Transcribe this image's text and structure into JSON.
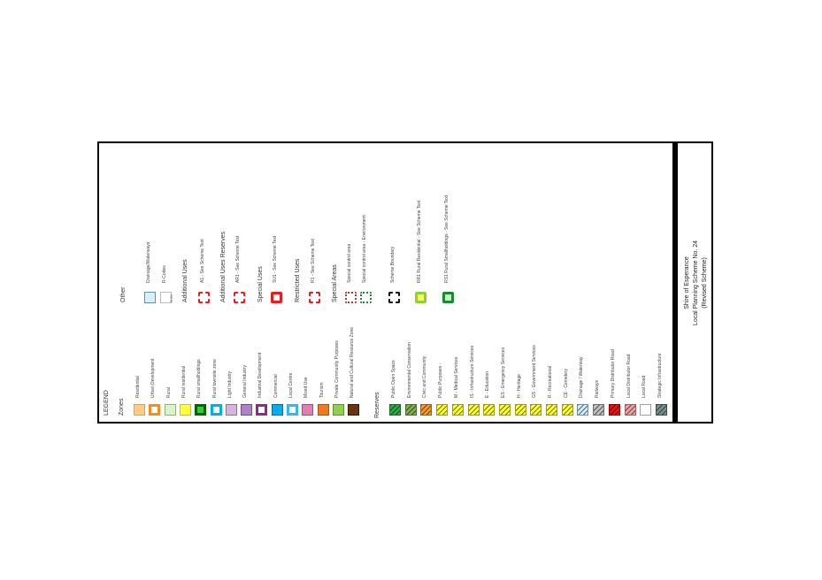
{
  "legend": {
    "heading": "LEGEND",
    "zones_heading": "Zones",
    "zones": [
      {
        "label": "Residential",
        "fill": "#ffcc80",
        "border": "#d8a060"
      },
      {
        "label": "Urban Development",
        "fill": "#ffffff",
        "border": "#f0901e",
        "thick": true
      },
      {
        "label": "Rural",
        "fill": "#d9f5c8",
        "border": "#90b080"
      },
      {
        "label": "Rural residential",
        "fill": "#ffff40",
        "border": "#c8c800"
      },
      {
        "label": "Rural smallholdings",
        "fill": "#33cc33",
        "border": "#006600",
        "thick": true
      },
      {
        "label": "Rural townsite zone",
        "fill": "#ffffff",
        "border": "#00b0e0",
        "thick": true
      },
      {
        "label": "Light Industry",
        "fill": "#d6b4e0",
        "border": "#9070a0"
      },
      {
        "label": "General Industry",
        "fill": "#b080c8",
        "border": "#705080"
      },
      {
        "label": "Industrial Development",
        "fill": "#ffffff",
        "border": "#8a2c8a",
        "thick": true
      },
      {
        "label": "Commercial",
        "fill": "#00aeef",
        "border": "#0070a0"
      },
      {
        "label": "Local Centre",
        "fill": "#ffffff",
        "border": "#30b8f0",
        "thick": true
      },
      {
        "label": "Mixed Use",
        "fill": "#e080b0",
        "border": "#a05070"
      },
      {
        "label": "Tourism",
        "fill": "#f07a1a",
        "border": "#b05000"
      },
      {
        "label": "Private Community Purposes",
        "fill": "#90d050",
        "border": "#609030"
      },
      {
        "label": "Natural and Cultural Resource Zone",
        "fill": "#6b3410",
        "border": "#3a1a00"
      }
    ],
    "reserves_heading": "Reserves",
    "reserves": [
      {
        "label": "Public Open Space",
        "fill": "#2eaa44",
        "border": "#1a6e28",
        "hatch": true
      },
      {
        "label": "Environmental Conservation",
        "fill": "#80b050",
        "border": "#507030",
        "hatch": true
      },
      {
        "label": "Civic and Community",
        "fill": "#f59a2a",
        "border": "#a06010",
        "hatch": true
      },
      {
        "label": "Public Purposes -",
        "fill": "#ffff30",
        "border": "#a0a000",
        "hatch": true
      },
      {
        "label": "M - Medical Services",
        "fill": "#ffff30",
        "border": "#a0a000",
        "hatch": true
      },
      {
        "label": "IS - Infrastructure Services",
        "fill": "#ffff30",
        "border": "#a0a000",
        "hatch": true
      },
      {
        "label": "E - Education",
        "fill": "#ffff30",
        "border": "#a0a000",
        "hatch": true
      },
      {
        "label": "ES - Emergency Services",
        "fill": "#ffff30",
        "border": "#a0a000",
        "hatch": true
      },
      {
        "label": "H - Heritage",
        "fill": "#ffff30",
        "border": "#a0a000",
        "hatch": true
      },
      {
        "label": "GS - Government Services",
        "fill": "#ffff30",
        "border": "#a0a000",
        "hatch": true
      },
      {
        "label": "R - Recreational",
        "fill": "#ffff30",
        "border": "#a0a000",
        "hatch": true
      },
      {
        "label": "CE - Cemetery",
        "fill": "#ffff30",
        "border": "#a0a000",
        "hatch": true
      },
      {
        "label": "Drainage / Waterway",
        "fill": "#d0ecf8",
        "border": "#7090a0",
        "hatch": true
      },
      {
        "label": "Railways",
        "fill": "#c0c0c0",
        "border": "#707070",
        "hatch": true
      },
      {
        "label": "Primary Distributor Road",
        "fill": "#ee1111",
        "border": "#900000",
        "hatch": true
      },
      {
        "label": "Local Distributor Road",
        "fill": "#f0a0a0",
        "border": "#a06060",
        "hatch": true
      },
      {
        "label": "Local Road",
        "fill": "#ffffff",
        "border": "#a0a0a0"
      },
      {
        "label": "Strategic Infrastructure",
        "fill": "#7a9090",
        "border": "#405050",
        "hatch": true
      }
    ],
    "other_heading": "Other",
    "other": [
      {
        "label": "Drainage/Waterways",
        "fill": "#d8f0fa",
        "border": "#6090b0"
      },
      {
        "label": "R-Codes",
        "fill": "#ffffff",
        "border": "#bbbbbb",
        "rcode": "R 20"
      }
    ],
    "additional_uses_heading": "Additional Uses",
    "additional_uses": [
      {
        "label": "A1 - See Scheme Text",
        "border": "#e02020",
        "style": "dashed"
      }
    ],
    "additional_uses_reserves_heading": "Additional Uses Reserves",
    "additional_uses_reserves": [
      {
        "label": "AR1 - See Scheme Text",
        "border": "#e02020",
        "style": "dashed"
      }
    ],
    "special_uses_heading": "Special Uses",
    "special_uses": [
      {
        "label": "SU1 - See Scheme Text",
        "border": "#e02020",
        "style": "solid"
      }
    ],
    "restricted_uses_heading": "Restricted Uses",
    "restricted_uses": [
      {
        "label": "R1 - See Scheme Text",
        "border": "#e02020",
        "style": "dashed"
      }
    ],
    "special_areas_heading": "Special Areas",
    "special_areas": [
      {
        "label": "Special control area",
        "border": "#c03030",
        "style": "dotted"
      },
      {
        "label": "Special control area - Environment",
        "border": "#208040",
        "style": "dotted"
      },
      {
        "label": "Scheme Boundary",
        "border": "#111111",
        "style": "dashed"
      },
      {
        "label": "RR1 Rural Residential - See Scheme Text",
        "border": "#8ad040",
        "fill": "#ffff50",
        "style": "solid"
      },
      {
        "label": "RS1 Rural Smallholdings - See Scheme Text",
        "border": "#1a8a30",
        "fill": "#c8f0c0",
        "style": "solid"
      }
    ]
  },
  "title_block": {
    "line1": "Shire of Esperance",
    "line2": "Local Planning Scheme No. 24",
    "line3": "(Revised Scheme)"
  }
}
